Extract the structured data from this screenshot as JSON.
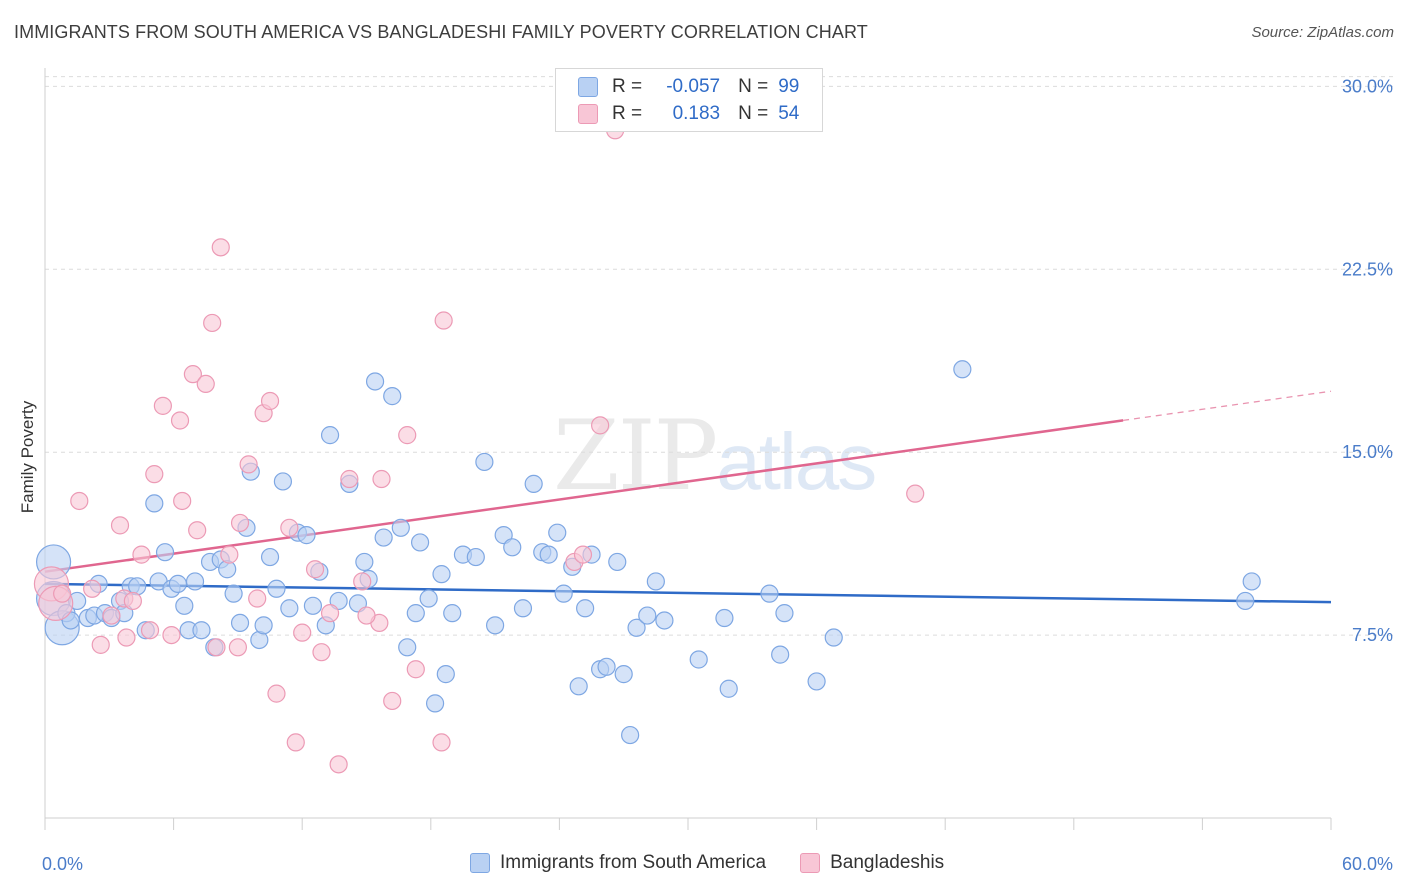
{
  "title": "IMMIGRANTS FROM SOUTH AMERICA VS BANGLADESHI FAMILY POVERTY CORRELATION CHART",
  "source": "Source: ZipAtlas.com",
  "watermark": {
    "zip": "ZIP",
    "atlas": "atlas"
  },
  "legend": {
    "rows": [
      {
        "r_label": "R =",
        "r_value": "-0.057",
        "n_label": "N =",
        "n_value": "99"
      },
      {
        "r_label": "R =",
        "r_value": "0.183",
        "n_label": "N =",
        "n_value": "54"
      }
    ]
  },
  "bottom_legend": {
    "series1": "Immigrants from South America",
    "series2": "Bangladeshis"
  },
  "colors": {
    "blue_fill": "#b9d1f3",
    "blue_stroke": "#7ea7e3",
    "blue_line": "#2f6bc7",
    "pink_fill": "#f8c6d6",
    "pink_stroke": "#ec9ab5",
    "pink_line": "#e0668f",
    "tick": "#4a7cc9"
  },
  "chart_data": {
    "type": "scatter",
    "title": "IMMIGRANTS FROM SOUTH AMERICA VS BANGLADESHI FAMILY POVERTY CORRELATION CHART",
    "xlabel": "",
    "ylabel": "Family Poverty",
    "xlim": [
      0,
      60
    ],
    "ylim": [
      0,
      31
    ],
    "x_tick_labels": [
      "0.0%",
      "60.0%"
    ],
    "y_ticks": [
      7.5,
      15.0,
      22.5,
      30.0
    ],
    "y_tick_labels": [
      "7.5%",
      "15.0%",
      "22.5%",
      "30.0%"
    ],
    "series": [
      {
        "name": "Immigrants from South America",
        "r": -0.057,
        "n": 99,
        "trend": {
          "x": [
            0,
            60
          ],
          "y": [
            9.6,
            8.85
          ],
          "solid_to": 60
        },
        "points": [
          {
            "x": 0.4,
            "y": 10.5,
            "big": true
          },
          {
            "x": 0.4,
            "y": 9.0,
            "big": true
          },
          {
            "x": 0.8,
            "y": 7.8,
            "big": true
          },
          {
            "x": 1.0,
            "y": 8.4
          },
          {
            "x": 1.2,
            "y": 8.1
          },
          {
            "x": 1.5,
            "y": 8.9
          },
          {
            "x": 2.0,
            "y": 8.2
          },
          {
            "x": 2.3,
            "y": 8.3
          },
          {
            "x": 2.5,
            "y": 9.6
          },
          {
            "x": 2.8,
            "y": 8.4
          },
          {
            "x": 3.1,
            "y": 8.2
          },
          {
            "x": 3.5,
            "y": 8.9
          },
          {
            "x": 3.7,
            "y": 8.4
          },
          {
            "x": 4.0,
            "y": 9.5
          },
          {
            "x": 4.3,
            "y": 9.5
          },
          {
            "x": 4.7,
            "y": 7.7
          },
          {
            "x": 5.1,
            "y": 12.9
          },
          {
            "x": 5.3,
            "y": 9.7
          },
          {
            "x": 5.6,
            "y": 10.9
          },
          {
            "x": 5.9,
            "y": 9.4
          },
          {
            "x": 6.2,
            "y": 9.6
          },
          {
            "x": 6.5,
            "y": 8.7
          },
          {
            "x": 6.7,
            "y": 7.7
          },
          {
            "x": 7.0,
            "y": 9.7
          },
          {
            "x": 7.3,
            "y": 7.7
          },
          {
            "x": 7.7,
            "y": 10.5
          },
          {
            "x": 7.9,
            "y": 7.0
          },
          {
            "x": 8.2,
            "y": 10.6
          },
          {
            "x": 8.5,
            "y": 10.2
          },
          {
            "x": 8.8,
            "y": 9.2
          },
          {
            "x": 9.1,
            "y": 8.0
          },
          {
            "x": 9.4,
            "y": 11.9
          },
          {
            "x": 9.6,
            "y": 14.2
          },
          {
            "x": 10.0,
            "y": 7.3
          },
          {
            "x": 10.2,
            "y": 7.9
          },
          {
            "x": 10.5,
            "y": 10.7
          },
          {
            "x": 10.8,
            "y": 9.4
          },
          {
            "x": 11.1,
            "y": 13.8
          },
          {
            "x": 11.4,
            "y": 8.6
          },
          {
            "x": 11.8,
            "y": 11.7
          },
          {
            "x": 12.2,
            "y": 11.6
          },
          {
            "x": 12.5,
            "y": 8.7
          },
          {
            "x": 12.8,
            "y": 10.1
          },
          {
            "x": 13.1,
            "y": 7.9
          },
          {
            "x": 13.3,
            "y": 15.7
          },
          {
            "x": 13.7,
            "y": 8.9
          },
          {
            "x": 14.2,
            "y": 13.7
          },
          {
            "x": 14.6,
            "y": 8.8
          },
          {
            "x": 14.9,
            "y": 10.5
          },
          {
            "x": 15.1,
            "y": 9.8
          },
          {
            "x": 15.4,
            "y": 17.9
          },
          {
            "x": 15.8,
            "y": 11.5
          },
          {
            "x": 16.2,
            "y": 17.3
          },
          {
            "x": 16.6,
            "y": 11.9
          },
          {
            "x": 16.9,
            "y": 7.0
          },
          {
            "x": 17.3,
            "y": 8.4
          },
          {
            "x": 17.5,
            "y": 11.3
          },
          {
            "x": 17.9,
            "y": 9.0
          },
          {
            "x": 18.2,
            "y": 4.7
          },
          {
            "x": 18.5,
            "y": 10.0
          },
          {
            "x": 18.7,
            "y": 5.9
          },
          {
            "x": 19.0,
            "y": 8.4
          },
          {
            "x": 19.5,
            "y": 10.8
          },
          {
            "x": 20.1,
            "y": 10.7
          },
          {
            "x": 20.5,
            "y": 14.6
          },
          {
            "x": 21.0,
            "y": 7.9
          },
          {
            "x": 21.4,
            "y": 11.6
          },
          {
            "x": 21.8,
            "y": 11.1
          },
          {
            "x": 22.3,
            "y": 8.6
          },
          {
            "x": 22.8,
            "y": 13.7
          },
          {
            "x": 23.2,
            "y": 10.9
          },
          {
            "x": 23.5,
            "y": 10.8
          },
          {
            "x": 23.9,
            "y": 11.7
          },
          {
            "x": 24.2,
            "y": 9.2
          },
          {
            "x": 24.6,
            "y": 10.3
          },
          {
            "x": 24.9,
            "y": 5.4
          },
          {
            "x": 25.2,
            "y": 8.6
          },
          {
            "x": 25.5,
            "y": 10.8
          },
          {
            "x": 25.9,
            "y": 6.1
          },
          {
            "x": 26.2,
            "y": 6.2
          },
          {
            "x": 26.7,
            "y": 10.5
          },
          {
            "x": 27.0,
            "y": 5.9
          },
          {
            "x": 27.3,
            "y": 3.4
          },
          {
            "x": 27.6,
            "y": 7.8
          },
          {
            "x": 28.1,
            "y": 8.3
          },
          {
            "x": 28.5,
            "y": 9.7
          },
          {
            "x": 28.9,
            "y": 8.1
          },
          {
            "x": 30.5,
            "y": 6.5
          },
          {
            "x": 31.7,
            "y": 8.2
          },
          {
            "x": 31.9,
            "y": 5.3
          },
          {
            "x": 33.8,
            "y": 9.2
          },
          {
            "x": 34.3,
            "y": 6.7
          },
          {
            "x": 34.5,
            "y": 8.4
          },
          {
            "x": 36.0,
            "y": 5.6
          },
          {
            "x": 36.8,
            "y": 7.4
          },
          {
            "x": 42.8,
            "y": 18.4
          },
          {
            "x": 56.0,
            "y": 8.9
          },
          {
            "x": 56.3,
            "y": 9.7
          }
        ]
      },
      {
        "name": "Bangladeshis",
        "r": 0.183,
        "n": 54,
        "trend": {
          "x": [
            0,
            60
          ],
          "y": [
            10.1,
            17.5
          ],
          "solid_to": 50.3
        },
        "points": [
          {
            "x": 0.3,
            "y": 9.6,
            "big": true
          },
          {
            "x": 0.5,
            "y": 8.8,
            "big": true
          },
          {
            "x": 0.8,
            "y": 9.2
          },
          {
            "x": 1.6,
            "y": 13.0
          },
          {
            "x": 2.2,
            "y": 9.4
          },
          {
            "x": 2.6,
            "y": 7.1
          },
          {
            "x": 3.1,
            "y": 8.3
          },
          {
            "x": 3.5,
            "y": 12.0
          },
          {
            "x": 3.7,
            "y": 9.0
          },
          {
            "x": 4.1,
            "y": 8.9
          },
          {
            "x": 4.5,
            "y": 10.8
          },
          {
            "x": 4.9,
            "y": 7.7
          },
          {
            "x": 5.1,
            "y": 14.1
          },
          {
            "x": 5.5,
            "y": 16.9
          },
          {
            "x": 5.9,
            "y": 7.5
          },
          {
            "x": 6.3,
            "y": 16.3
          },
          {
            "x": 6.4,
            "y": 13.0
          },
          {
            "x": 6.9,
            "y": 18.2
          },
          {
            "x": 7.1,
            "y": 11.8
          },
          {
            "x": 7.5,
            "y": 17.8
          },
          {
            "x": 7.8,
            "y": 20.3
          },
          {
            "x": 8.0,
            "y": 7.0
          },
          {
            "x": 8.2,
            "y": 23.4
          },
          {
            "x": 8.6,
            "y": 10.8
          },
          {
            "x": 9.1,
            "y": 12.1
          },
          {
            "x": 9.5,
            "y": 14.5
          },
          {
            "x": 9.9,
            "y": 9.0
          },
          {
            "x": 10.2,
            "y": 16.6
          },
          {
            "x": 10.5,
            "y": 17.1
          },
          {
            "x": 10.8,
            "y": 5.1
          },
          {
            "x": 11.4,
            "y": 11.9
          },
          {
            "x": 11.7,
            "y": 3.1
          },
          {
            "x": 12.0,
            "y": 7.6
          },
          {
            "x": 12.6,
            "y": 10.2
          },
          {
            "x": 12.9,
            "y": 6.8
          },
          {
            "x": 13.3,
            "y": 8.4
          },
          {
            "x": 13.7,
            "y": 2.2
          },
          {
            "x": 14.2,
            "y": 13.9
          },
          {
            "x": 14.8,
            "y": 9.7
          },
          {
            "x": 15.6,
            "y": 8.0
          },
          {
            "x": 15.7,
            "y": 13.9
          },
          {
            "x": 16.2,
            "y": 4.8
          },
          {
            "x": 16.9,
            "y": 15.7
          },
          {
            "x": 17.3,
            "y": 6.1
          },
          {
            "x": 18.5,
            "y": 3.1
          },
          {
            "x": 18.6,
            "y": 20.4
          },
          {
            "x": 24.7,
            "y": 10.5
          },
          {
            "x": 25.1,
            "y": 10.8
          },
          {
            "x": 25.9,
            "y": 16.1
          },
          {
            "x": 26.6,
            "y": 28.2
          },
          {
            "x": 40.6,
            "y": 13.3
          },
          {
            "x": 9.0,
            "y": 7.0
          },
          {
            "x": 15.0,
            "y": 8.3
          },
          {
            "x": 3.8,
            "y": 7.4
          }
        ]
      }
    ]
  }
}
